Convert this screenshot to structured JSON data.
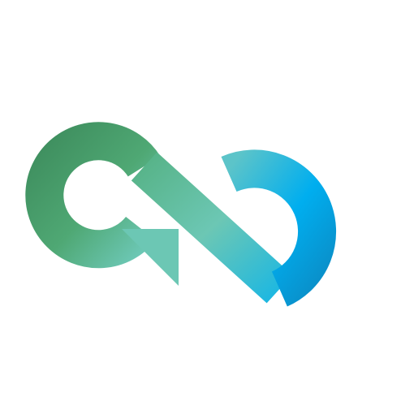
{
  "logo": {
    "icon": "infinity-loop-arrow-icon",
    "colors": {
      "green_dark": "#3f8f5f",
      "green": "#4fa874",
      "mint": "#6cc7b4",
      "teal": "#5cc4c9",
      "cyan": "#1fb8e0",
      "blue": "#00aeef",
      "blue_dark": "#0a8fc9",
      "background": "#ffffff"
    }
  }
}
